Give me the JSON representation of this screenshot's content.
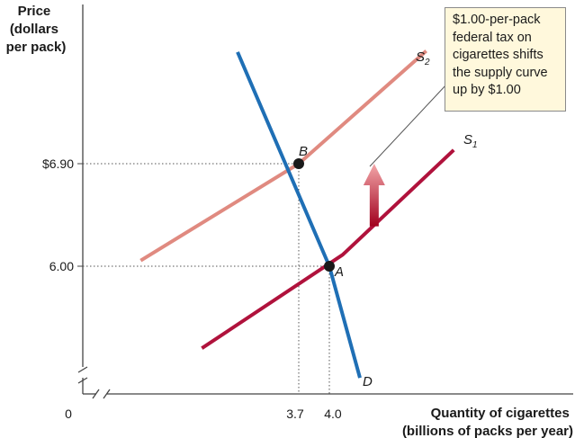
{
  "chart_data": {
    "type": "line",
    "title": "",
    "ylabel_lines": [
      "Price",
      "(dollars",
      "per pack)"
    ],
    "xlabel_lines": [
      "Quantity of cigarettes",
      "(billions of packs per year)"
    ],
    "origin_label": "0",
    "axis_break": true,
    "x_ticks": [
      {
        "value": 3.7,
        "label": "3.7"
      },
      {
        "value": 4.0,
        "label": "4.0"
      }
    ],
    "y_ticks": [
      {
        "value": 6.9,
        "label": "$6.90"
      },
      {
        "value": 6.0,
        "label": "6.00"
      }
    ],
    "series": [
      {
        "name": "S1",
        "base": "S",
        "subscript": "1",
        "color": "#b0123c",
        "points": [
          [
            2.75,
            5.28
          ],
          [
            4.13,
            6.1
          ],
          [
            5.22,
            7.02
          ]
        ]
      },
      {
        "name": "S2",
        "base": "S",
        "subscript": "2",
        "color": "#e08a80",
        "points": [
          [
            2.15,
            6.05
          ],
          [
            3.7,
            6.9
          ],
          [
            4.95,
            7.89
          ]
        ]
      },
      {
        "name": "D",
        "base": "D",
        "subscript": "",
        "color": "#1f6fb5",
        "points": [
          [
            3.1,
            7.88
          ],
          [
            4.0,
            6.0
          ],
          [
            4.3,
            5.02
          ]
        ]
      }
    ],
    "points": [
      {
        "label": "A",
        "x": 4.0,
        "y": 6.0
      },
      {
        "label": "B",
        "x": 3.7,
        "y": 6.9
      }
    ],
    "annotation": "$1.00-per-pack federal tax on cigarettes shifts the supply curve up by $1.00",
    "arrow": {
      "from": 6.35,
      "to": 6.9,
      "x": 4.44,
      "direction": "up"
    }
  },
  "callout_lines": [
    "$1.00-per-pack",
    "federal tax on",
    "cigarettes shifts",
    "the supply curve",
    "up by $1.00"
  ]
}
